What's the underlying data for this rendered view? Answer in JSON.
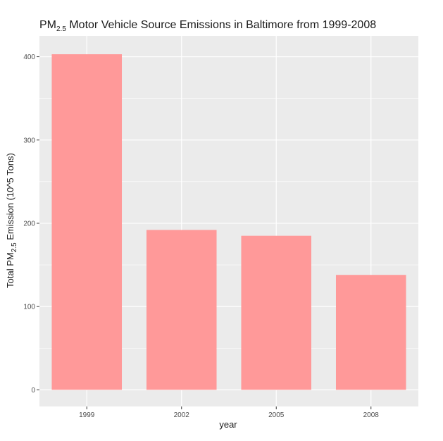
{
  "chart_data": {
    "type": "bar",
    "title": {
      "prefix": "PM",
      "sub": "2.5",
      "suffix": " Motor Vehicle Source Emissions in Baltimore from 1999-2008"
    },
    "xlabel": "year",
    "ylabel": {
      "prefix": "Total PM",
      "sub": "2.5",
      "suffix": " Emission (10^5 Tons)"
    },
    "categories": [
      "1999",
      "2002",
      "2005",
      "2008"
    ],
    "values": [
      403,
      192,
      185,
      138
    ],
    "yticks": [
      0,
      100,
      200,
      300,
      400
    ],
    "ylim": [
      -20,
      425
    ],
    "grid": true,
    "legend": "none",
    "colors": {
      "bar": "#ff9999",
      "panel": "#ebebeb",
      "grid": "#ffffff",
      "tick": "#333333"
    }
  }
}
